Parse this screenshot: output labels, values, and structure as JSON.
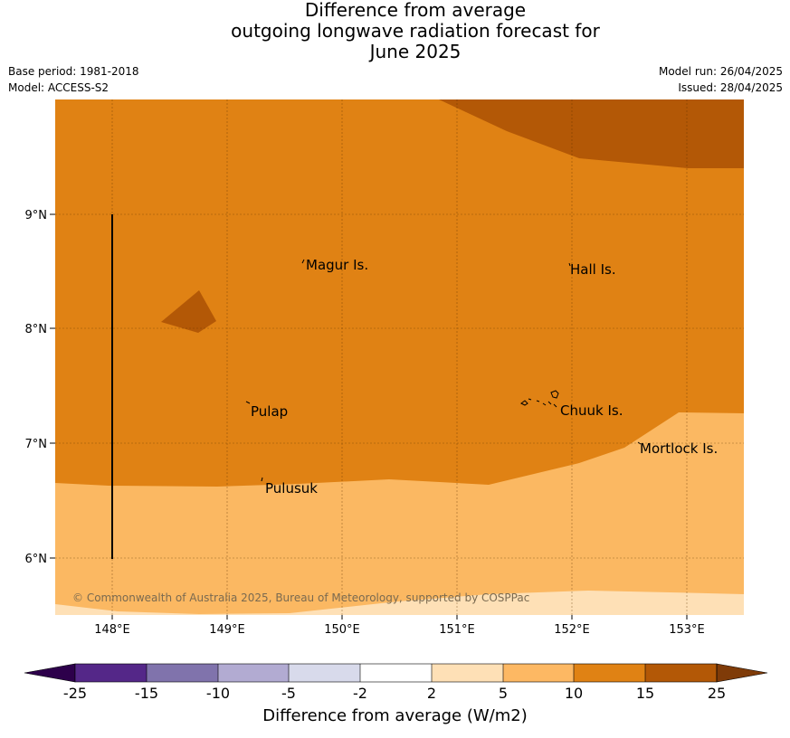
{
  "title": {
    "line1": "Difference from average",
    "line2": "outgoing longwave radiation forecast for",
    "line3": "June 2025"
  },
  "meta": {
    "base_period": "Base period: 1981-2018",
    "model": "Model: ACCESS-S2",
    "model_run": "Model run: 26/04/2025",
    "issued": "Issued: 28/04/2025"
  },
  "map": {
    "lat_ticks": [
      "9°N",
      "8°N",
      "7°N",
      "6°N"
    ],
    "lon_ticks": [
      "148°E",
      "149°E",
      "150°E",
      "151°E",
      "152°E",
      "153°E"
    ],
    "places": [
      "Magur Is.",
      "Hall Is.",
      "Pulap",
      "Chuuk Is.",
      "Mortlock Is.",
      "Pulusuk"
    ],
    "copyright": "© Commonwealth of Australia 2025, Bureau of Meteorology, supported by COSPPac",
    "colors": {
      "band_5_10": "#fbb862",
      "band_10_15": "#e08214",
      "band_15_25": "#b35806",
      "band_2_5": "#fee0b6"
    }
  },
  "colorbar": {
    "tick_labels": [
      "-25",
      "-15",
      "-10",
      "-5",
      "-2",
      "2",
      "5",
      "10",
      "15",
      "25"
    ],
    "label": "Difference from average (W/m2)",
    "colors": [
      "#2d004b",
      "#542788",
      "#8073ac",
      "#b2abd2",
      "#d8daeb",
      "#ffffff",
      "#fee0b6",
      "#fdb863",
      "#e08214",
      "#b35806",
      "#7f3b08"
    ]
  }
}
